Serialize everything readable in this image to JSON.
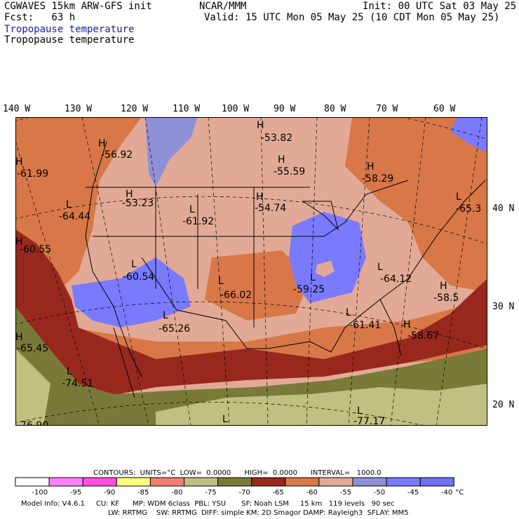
{
  "header": {
    "model": "CGWAVES 15km ARW-GFS init",
    "fcst": "Fcst:   63 h",
    "org": "NCAR/MMM",
    "init": "Init: 00 UTC Sat 03 May 25",
    "valid": "Valid: 15 UTC Mon 05 May 25 (10 CDT Mon 05 May 25)",
    "field_label_1": "Tropopause temperature",
    "field_label_2": "Tropopause temperature"
  },
  "axes": {
    "longitudes": [
      "140 W",
      "130 W",
      "120 W",
      "110 W",
      "100 W",
      "90 W",
      "80 W",
      "70 W",
      "60 W"
    ],
    "latitudes": [
      "40 N",
      "30 N",
      "20 N"
    ]
  },
  "map_labels": [
    {
      "kind": "H",
      "value": "-53.82"
    },
    {
      "kind": "H",
      "value": "-56.92"
    },
    {
      "kind": "H",
      "value": "-55.59"
    },
    {
      "kind": "H",
      "value": "-61.99"
    },
    {
      "kind": "H",
      "value": "-58.29"
    },
    {
      "kind": "H",
      "value": "-53.23"
    },
    {
      "kind": "H",
      "value": "-54.74"
    },
    {
      "kind": "L",
      "value": "-64.44"
    },
    {
      "kind": "L",
      "value": "-61.92"
    },
    {
      "kind": "L",
      "value": "-65.3"
    },
    {
      "kind": "H",
      "value": "-60.55"
    },
    {
      "kind": "L",
      "value": "-60.54"
    },
    {
      "kind": "L",
      "value": "-59.25"
    },
    {
      "kind": "L",
      "value": "-64.12"
    },
    {
      "kind": "L",
      "value": "-66.02"
    },
    {
      "kind": "H",
      "value": "-58.5"
    },
    {
      "kind": "L",
      "value": "-65.26"
    },
    {
      "kind": "L",
      "value": "-61.41"
    },
    {
      "kind": "H",
      "value": "-58.67"
    },
    {
      "kind": "H",
      "value": "-65.45"
    },
    {
      "kind": "L",
      "value": "-74.51"
    },
    {
      "kind": "L",
      "value": "-77.17"
    },
    {
      "kind": "L",
      "value": "-76.90"
    }
  ],
  "legend": {
    "contours_line": "CONTOURS:  UNITS=°C  LOW=  0.0000      HIGH=  0.0000      INTERVAL=   1000.0",
    "tick_labels": [
      "-100",
      "-95",
      "-90",
      "-85",
      "-80",
      "-75",
      "-70",
      "-65",
      "-60",
      "-55",
      "-50",
      "-45",
      "-40"
    ],
    "unit": "°C",
    "colors": [
      "#ffffff",
      "#ff80ff",
      "#ff50e0",
      "#ffff80",
      "#f08070",
      "#c0c080",
      "#7a7a38",
      "#98281e",
      "#d87848",
      "#e2aa96",
      "#9090d8",
      "#7a7aff",
      "#7070f0"
    ]
  },
  "footer": {
    "line1": "Model Info: V4.6.1     CU: KF      MP: WDM 6class  PBL: YSU       SF: Noah LSM     15 km   119 levels   90 sec",
    "line2": "LW: RRTMG    SW: RRTMG  DIFF: simple KM: 2D Smagor DAMP: Rayleigh3  SFLAY: MM5"
  },
  "colors": {
    "deep_blue": "#1a1aa6",
    "field_lightblue": "#7a7aff",
    "field_pink": "#e2aa96",
    "field_orange": "#d87848",
    "field_red": "#98281e",
    "field_olive": "#7a7a38",
    "field_khaki": "#c0c080"
  }
}
